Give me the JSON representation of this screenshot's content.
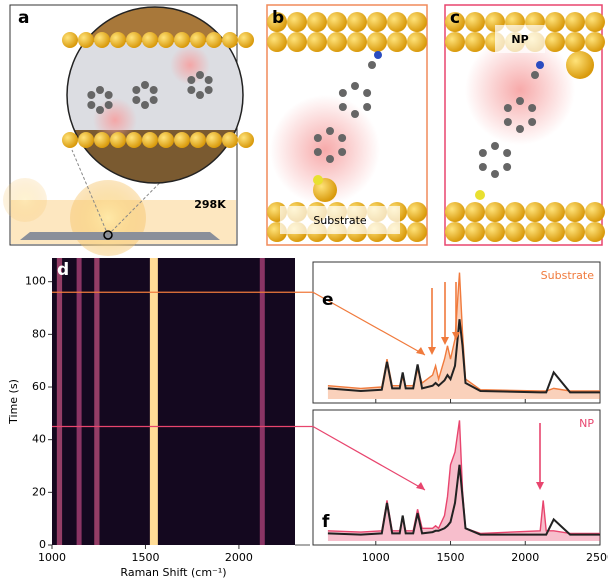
{
  "illustrations": {
    "panel_labels": [
      "a",
      "b",
      "c"
    ],
    "temperature": "298K",
    "substrate_label": "Substrate",
    "np_label": "NP"
  },
  "chart_data": [
    {
      "type": "heatmap",
      "panel_label": "d",
      "x_label": "Raman Shift (cm⁻¹)",
      "y_label": "Time (s)",
      "xlim": [
        1000,
        2300
      ],
      "xticks": [
        1000,
        1500,
        2000
      ],
      "ylim": [
        0,
        109
      ],
      "yticks": [
        0,
        20,
        40,
        60,
        80,
        100
      ],
      "bands": {
        "x": [
          1040,
          1145,
          1240,
          1545,
          2125
        ],
        "values": [
          0.45,
          0.4,
          0.45,
          1,
          0.4
        ]
      },
      "hlines": [
        {
          "value": 96,
          "color": "#f07a3c"
        },
        {
          "value": 45,
          "color": "#e8456e"
        }
      ]
    },
    {
      "type": "line",
      "panel_label": "e",
      "annotation": "Substrate",
      "annotation_color": "#f07a3c",
      "xlim": [
        580,
        2500
      ],
      "xticks": [
        1000,
        1500,
        2000,
        2500
      ],
      "ylim": [
        0,
        1
      ],
      "x": [
        680,
        900,
        1040,
        1075,
        1110,
        1160,
        1180,
        1200,
        1250,
        1280,
        1310,
        1380,
        1400,
        1420,
        1460,
        1480,
        1500,
        1530,
        1560,
        1580,
        1600,
        1700,
        2100,
        2120,
        2140,
        2190,
        2300,
        2500
      ],
      "series": [
        {
          "color": "#f07a3c",
          "values": [
            0.1,
            0.08,
            0.09,
            0.3,
            0.1,
            0.1,
            0.16,
            0.1,
            0.1,
            0.22,
            0.12,
            0.18,
            0.25,
            0.15,
            0.3,
            0.4,
            0.3,
            0.45,
            0.95,
            0.5,
            0.15,
            0.07,
            0.06,
            0.06,
            0.06,
            0.08,
            0.06,
            0.06
          ]
        },
        {
          "color": "#222222",
          "values": [
            0.08,
            0.06,
            0.07,
            0.28,
            0.08,
            0.08,
            0.2,
            0.08,
            0.08,
            0.26,
            0.08,
            0.1,
            0.12,
            0.1,
            0.14,
            0.18,
            0.15,
            0.25,
            0.6,
            0.4,
            0.12,
            0.06,
            0.05,
            0.05,
            0.05,
            0.2,
            0.05,
            0.05
          ]
        }
      ]
    },
    {
      "type": "line",
      "panel_label": "f",
      "annotation": "NP",
      "annotation_color": "#e8456e",
      "xlim": [
        580,
        2500
      ],
      "xticks": [
        1000,
        1500,
        2000,
        2500
      ],
      "ylim": [
        0,
        1
      ],
      "x": [
        680,
        900,
        1040,
        1075,
        1110,
        1160,
        1180,
        1200,
        1250,
        1280,
        1310,
        1380,
        1400,
        1420,
        1460,
        1480,
        1500,
        1530,
        1560,
        1580,
        1600,
        1700,
        2100,
        2120,
        2140,
        2190,
        2300,
        2500
      ],
      "series": [
        {
          "color": "#e8456e",
          "values": [
            0.08,
            0.07,
            0.08,
            0.32,
            0.08,
            0.08,
            0.18,
            0.08,
            0.08,
            0.25,
            0.1,
            0.1,
            0.12,
            0.1,
            0.2,
            0.35,
            0.6,
            0.7,
            0.95,
            0.4,
            0.1,
            0.06,
            0.08,
            0.32,
            0.08,
            0.08,
            0.06,
            0.06
          ]
        },
        {
          "color": "#222222",
          "values": [
            0.06,
            0.05,
            0.06,
            0.3,
            0.06,
            0.06,
            0.2,
            0.06,
            0.06,
            0.22,
            0.06,
            0.07,
            0.08,
            0.08,
            0.1,
            0.12,
            0.15,
            0.3,
            0.6,
            0.35,
            0.1,
            0.05,
            0.05,
            0.05,
            0.05,
            0.17,
            0.05,
            0.05
          ]
        }
      ]
    }
  ]
}
